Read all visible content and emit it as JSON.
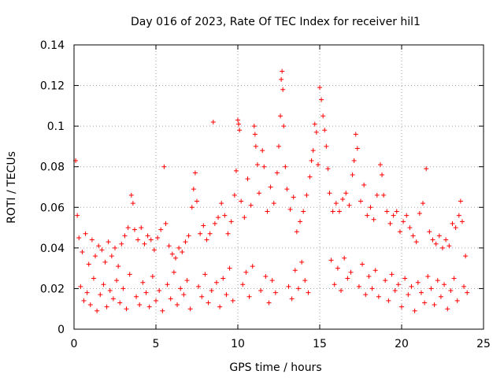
{
  "chart_data": {
    "type": "scatter",
    "title": "Day 016 of 2023, Rate Of TEC Index for receiver hil1",
    "xlabel": "GPS time / hours",
    "ylabel": "ROTI / TECUs",
    "xlim": [
      0,
      25
    ],
    "ylim": [
      0,
      0.14
    ],
    "x_ticks": [
      0,
      5,
      10,
      15,
      20,
      25
    ],
    "x_tick_labels": [
      "0",
      "5",
      "10",
      "15",
      "20",
      "25"
    ],
    "y_ticks": [
      0,
      0.02,
      0.04,
      0.06,
      0.08,
      0.1,
      0.12,
      0.14
    ],
    "y_tick_labels": [
      "0",
      "0.02",
      "0.04",
      "0.06",
      "0.08",
      "0.1",
      "0.12",
      "0.14"
    ],
    "grid": true,
    "marker": "+",
    "marker_color": "#ff0000",
    "series": [
      {
        "name": "ROTI",
        "points": [
          [
            0.1,
            0.083
          ],
          [
            0.2,
            0.056
          ],
          [
            0.3,
            0.045
          ],
          [
            0.5,
            0.038
          ],
          [
            0.7,
            0.047
          ],
          [
            0.9,
            0.032
          ],
          [
            1.1,
            0.044
          ],
          [
            1.3,
            0.036
          ],
          [
            1.5,
            0.041
          ],
          [
            1.7,
            0.039
          ],
          [
            1.9,
            0.033
          ],
          [
            2.1,
            0.043
          ],
          [
            2.3,
            0.036
          ],
          [
            2.5,
            0.04
          ],
          [
            2.7,
            0.031
          ],
          [
            2.9,
            0.042
          ],
          [
            3.1,
            0.046
          ],
          [
            3.3,
            0.05
          ],
          [
            3.5,
            0.066
          ],
          [
            3.6,
            0.062
          ],
          [
            3.7,
            0.049
          ],
          [
            3.9,
            0.044
          ],
          [
            4.1,
            0.05
          ],
          [
            4.3,
            0.042
          ],
          [
            4.5,
            0.046
          ],
          [
            4.7,
            0.044
          ],
          [
            4.9,
            0.039
          ],
          [
            5.1,
            0.045
          ],
          [
            5.3,
            0.049
          ],
          [
            5.5,
            0.08
          ],
          [
            5.6,
            0.052
          ],
          [
            5.8,
            0.041
          ],
          [
            6.0,
            0.037
          ],
          [
            6.2,
            0.035
          ],
          [
            6.4,
            0.04
          ],
          [
            6.6,
            0.038
          ],
          [
            6.8,
            0.043
          ],
          [
            7.0,
            0.046
          ],
          [
            7.2,
            0.06
          ],
          [
            7.3,
            0.069
          ],
          [
            7.4,
            0.077
          ],
          [
            7.5,
            0.063
          ],
          [
            7.7,
            0.047
          ],
          [
            7.9,
            0.051
          ],
          [
            8.1,
            0.044
          ],
          [
            8.3,
            0.047
          ],
          [
            8.5,
            0.102
          ],
          [
            8.6,
            0.052
          ],
          [
            8.8,
            0.055
          ],
          [
            9.0,
            0.062
          ],
          [
            9.2,
            0.056
          ],
          [
            9.4,
            0.047
          ],
          [
            9.6,
            0.053
          ],
          [
            9.8,
            0.066
          ],
          [
            10.0,
            0.103
          ],
          [
            10.05,
            0.101
          ],
          [
            10.1,
            0.098
          ],
          [
            9.9,
            0.078
          ],
          [
            10.2,
            0.063
          ],
          [
            10.4,
            0.055
          ],
          [
            10.6,
            0.074
          ],
          [
            10.8,
            0.061
          ],
          [
            11.0,
            0.1
          ],
          [
            11.05,
            0.096
          ],
          [
            11.1,
            0.09
          ],
          [
            11.2,
            0.081
          ],
          [
            11.3,
            0.067
          ],
          [
            11.5,
            0.088
          ],
          [
            11.6,
            0.08
          ],
          [
            11.8,
            0.058
          ],
          [
            12.0,
            0.07
          ],
          [
            12.2,
            0.062
          ],
          [
            12.4,
            0.077
          ],
          [
            12.5,
            0.09
          ],
          [
            12.6,
            0.105
          ],
          [
            12.65,
            0.123
          ],
          [
            12.7,
            0.127
          ],
          [
            12.75,
            0.118
          ],
          [
            12.8,
            0.1
          ],
          [
            12.9,
            0.08
          ],
          [
            13.0,
            0.069
          ],
          [
            13.2,
            0.059
          ],
          [
            13.4,
            0.065
          ],
          [
            13.6,
            0.048
          ],
          [
            13.8,
            0.053
          ],
          [
            14.0,
            0.058
          ],
          [
            14.2,
            0.066
          ],
          [
            14.4,
            0.075
          ],
          [
            14.5,
            0.083
          ],
          [
            14.6,
            0.088
          ],
          [
            14.7,
            0.101
          ],
          [
            14.8,
            0.097
          ],
          [
            14.9,
            0.081
          ],
          [
            15.0,
            0.119
          ],
          [
            15.1,
            0.113
          ],
          [
            15.2,
            0.105
          ],
          [
            15.3,
            0.098
          ],
          [
            15.4,
            0.09
          ],
          [
            15.5,
            0.079
          ],
          [
            15.6,
            0.067
          ],
          [
            15.8,
            0.058
          ],
          [
            16.0,
            0.062
          ],
          [
            16.2,
            0.058
          ],
          [
            16.4,
            0.064
          ],
          [
            16.6,
            0.067
          ],
          [
            16.8,
            0.061
          ],
          [
            17.0,
            0.076
          ],
          [
            17.1,
            0.083
          ],
          [
            17.2,
            0.096
          ],
          [
            17.3,
            0.089
          ],
          [
            17.5,
            0.063
          ],
          [
            17.7,
            0.071
          ],
          [
            17.9,
            0.056
          ],
          [
            18.1,
            0.06
          ],
          [
            18.3,
            0.054
          ],
          [
            18.5,
            0.066
          ],
          [
            18.7,
            0.081
          ],
          [
            18.8,
            0.076
          ],
          [
            18.9,
            0.066
          ],
          [
            19.1,
            0.058
          ],
          [
            19.3,
            0.052
          ],
          [
            19.5,
            0.056
          ],
          [
            19.7,
            0.058
          ],
          [
            19.9,
            0.048
          ],
          [
            20.1,
            0.053
          ],
          [
            20.3,
            0.056
          ],
          [
            20.5,
            0.05
          ],
          [
            20.7,
            0.046
          ],
          [
            20.9,
            0.043
          ],
          [
            21.1,
            0.057
          ],
          [
            21.3,
            0.062
          ],
          [
            21.5,
            0.079
          ],
          [
            21.7,
            0.048
          ],
          [
            21.9,
            0.044
          ],
          [
            22.1,
            0.042
          ],
          [
            22.3,
            0.046
          ],
          [
            22.5,
            0.04
          ],
          [
            22.7,
            0.044
          ],
          [
            22.9,
            0.041
          ],
          [
            23.1,
            0.052
          ],
          [
            23.3,
            0.05
          ],
          [
            23.5,
            0.056
          ],
          [
            23.6,
            0.063
          ],
          [
            23.7,
            0.053
          ],
          [
            23.9,
            0.036
          ],
          [
            0.4,
            0.021
          ],
          [
            0.6,
            0.014
          ],
          [
            0.8,
            0.018
          ],
          [
            1.0,
            0.012
          ],
          [
            1.2,
            0.025
          ],
          [
            1.4,
            0.009
          ],
          [
            1.6,
            0.017
          ],
          [
            1.8,
            0.022
          ],
          [
            2.0,
            0.011
          ],
          [
            2.2,
            0.019
          ],
          [
            2.4,
            0.015
          ],
          [
            2.6,
            0.024
          ],
          [
            2.8,
            0.013
          ],
          [
            3.0,
            0.02
          ],
          [
            3.2,
            0.01
          ],
          [
            3.4,
            0.027
          ],
          [
            3.8,
            0.016
          ],
          [
            4.0,
            0.012
          ],
          [
            4.2,
            0.023
          ],
          [
            4.4,
            0.018
          ],
          [
            4.6,
            0.011
          ],
          [
            4.8,
            0.026
          ],
          [
            5.0,
            0.014
          ],
          [
            5.2,
            0.019
          ],
          [
            5.4,
            0.009
          ],
          [
            5.7,
            0.022
          ],
          [
            5.9,
            0.015
          ],
          [
            6.1,
            0.028
          ],
          [
            6.3,
            0.012
          ],
          [
            6.5,
            0.02
          ],
          [
            6.7,
            0.017
          ],
          [
            6.9,
            0.024
          ],
          [
            7.1,
            0.01
          ],
          [
            7.6,
            0.021
          ],
          [
            7.8,
            0.016
          ],
          [
            8.0,
            0.027
          ],
          [
            8.2,
            0.013
          ],
          [
            8.4,
            0.019
          ],
          [
            8.7,
            0.023
          ],
          [
            8.9,
            0.011
          ],
          [
            9.1,
            0.025
          ],
          [
            9.3,
            0.017
          ],
          [
            9.5,
            0.03
          ],
          [
            9.7,
            0.014
          ],
          [
            10.3,
            0.022
          ],
          [
            10.5,
            0.028
          ],
          [
            10.7,
            0.016
          ],
          [
            10.9,
            0.031
          ],
          [
            11.4,
            0.019
          ],
          [
            11.7,
            0.026
          ],
          [
            11.9,
            0.013
          ],
          [
            12.1,
            0.024
          ],
          [
            12.3,
            0.018
          ],
          [
            13.1,
            0.021
          ],
          [
            13.3,
            0.015
          ],
          [
            13.5,
            0.029
          ],
          [
            13.7,
            0.02
          ],
          [
            13.9,
            0.033
          ],
          [
            14.1,
            0.024
          ],
          [
            14.3,
            0.018
          ],
          [
            15.7,
            0.034
          ],
          [
            15.9,
            0.022
          ],
          [
            16.1,
            0.03
          ],
          [
            16.3,
            0.019
          ],
          [
            16.5,
            0.035
          ],
          [
            16.7,
            0.025
          ],
          [
            16.9,
            0.028
          ],
          [
            17.4,
            0.021
          ],
          [
            17.6,
            0.032
          ],
          [
            17.8,
            0.017
          ],
          [
            18.0,
            0.026
          ],
          [
            18.2,
            0.02
          ],
          [
            18.4,
            0.029
          ],
          [
            18.6,
            0.016
          ],
          [
            19.0,
            0.024
          ],
          [
            19.2,
            0.014
          ],
          [
            19.4,
            0.027
          ],
          [
            19.6,
            0.019
          ],
          [
            19.8,
            0.022
          ],
          [
            20.0,
            0.011
          ],
          [
            20.2,
            0.025
          ],
          [
            20.4,
            0.017
          ],
          [
            20.6,
            0.021
          ],
          [
            20.8,
            0.009
          ],
          [
            21.0,
            0.023
          ],
          [
            21.2,
            0.018
          ],
          [
            21.4,
            0.013
          ],
          [
            21.6,
            0.026
          ],
          [
            21.8,
            0.02
          ],
          [
            22.0,
            0.012
          ],
          [
            22.2,
            0.024
          ],
          [
            22.4,
            0.016
          ],
          [
            22.6,
            0.022
          ],
          [
            22.8,
            0.01
          ],
          [
            23.0,
            0.019
          ],
          [
            23.2,
            0.025
          ],
          [
            23.4,
            0.014
          ],
          [
            23.8,
            0.021
          ],
          [
            24.0,
            0.018
          ]
        ]
      }
    ]
  }
}
